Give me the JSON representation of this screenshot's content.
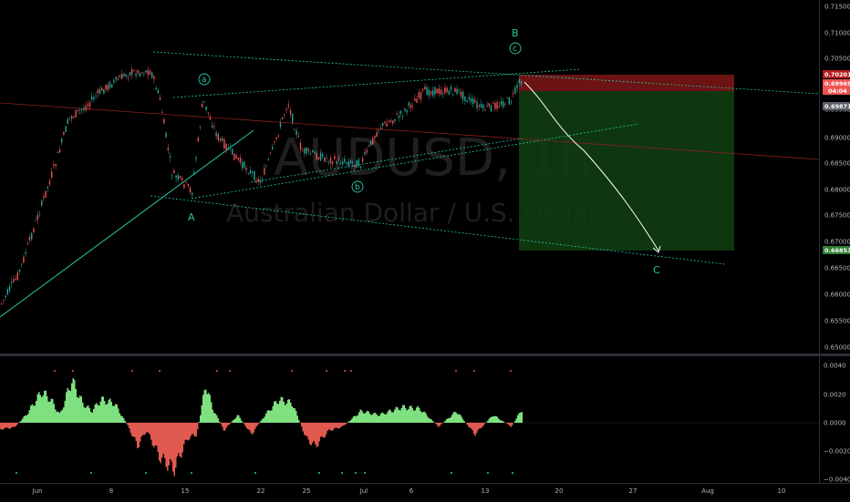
{
  "symbol": {
    "watermark": "AUDUSD, 1h",
    "description": "Australian Dollar / U.S. Dollar"
  },
  "price_axis": {
    "ticks": [
      "0.71500",
      "0.71000",
      "0.70500",
      "0.70000",
      "0.69500",
      "0.69000",
      "0.68500",
      "0.68000",
      "0.67500",
      "0.67000",
      "0.66500",
      "0.66000",
      "0.65500",
      "0.65000"
    ],
    "tags": {
      "stop_price": "0.70201",
      "current_price": "0.69969",
      "countdown": "04:04",
      "entry_price": "0.69871",
      "target_price": "0.66853"
    },
    "colors": {
      "stop": "#b71c1c",
      "current": "#ef5350",
      "entry": "#5d606b",
      "target": "#2e7d32"
    }
  },
  "osc_axis": {
    "ticks": [
      "0.0040",
      "0.0020",
      "0.0000",
      "−0.0020",
      "−0.0040"
    ]
  },
  "time_axis": {
    "ticks": [
      "Jun",
      "8",
      "15",
      "22",
      "25",
      "Jul",
      "6",
      "13",
      "20",
      "27",
      "Aug",
      "10"
    ]
  },
  "wave_labels": {
    "A": "A",
    "B": "B",
    "C": "C",
    "a": "a",
    "b": "b",
    "c": "c"
  },
  "colors": {
    "up": "#26a69a",
    "down": "#ef5350",
    "channel": "#26c6a6",
    "projection": "#ffffff",
    "osc_pos": "#7fe07f",
    "osc_neg": "#e05a50"
  }
}
